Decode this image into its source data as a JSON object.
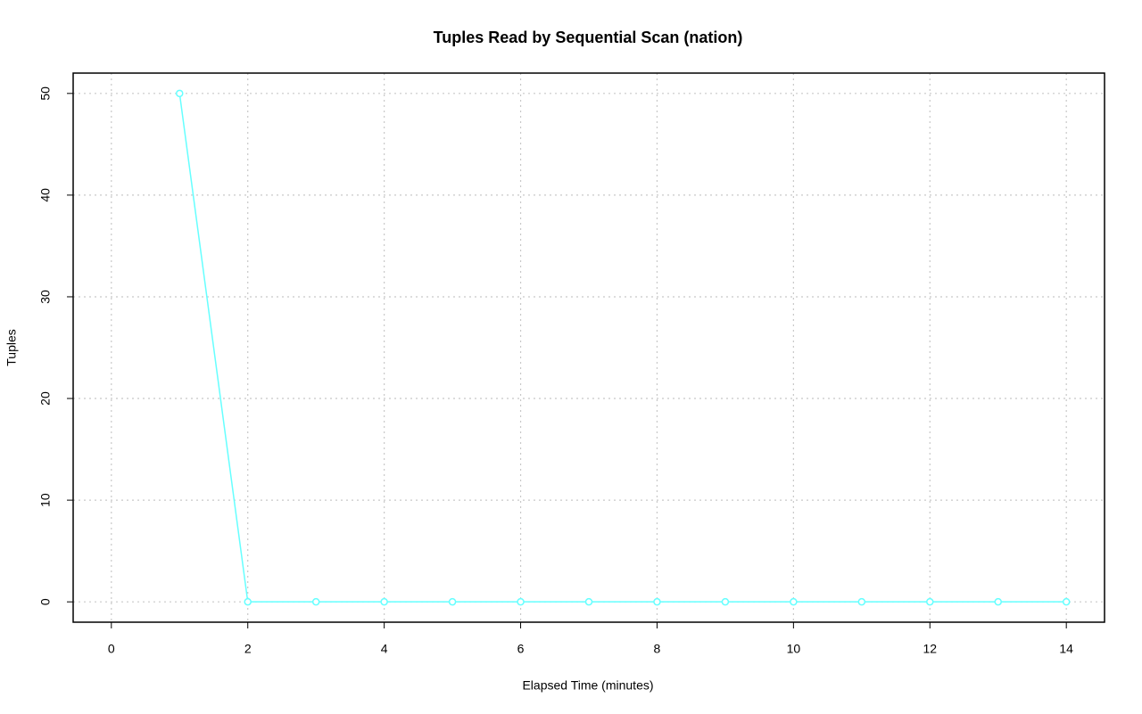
{
  "chart_data": {
    "type": "line",
    "title": "Tuples Read by Sequential Scan (nation)",
    "x_label": "Elapsed Time (minutes)",
    "y_label": "Tuples",
    "x": [
      1,
      2,
      3,
      4,
      5,
      6,
      7,
      8,
      9,
      10,
      11,
      12,
      13,
      14
    ],
    "series": [
      {
        "name": "nation",
        "color": "#66ffff",
        "values": [
          50,
          0,
          0,
          0,
          0,
          0,
          0,
          0,
          0,
          0,
          0,
          0,
          0,
          0
        ]
      }
    ],
    "xlim": [
      -0.56,
      14.56
    ],
    "ylim": [
      -2,
      52
    ],
    "xticks": [
      0,
      2,
      4,
      6,
      8,
      10,
      12,
      14
    ],
    "yticks": [
      0,
      10,
      20,
      30,
      40,
      50
    ],
    "grid": true
  }
}
